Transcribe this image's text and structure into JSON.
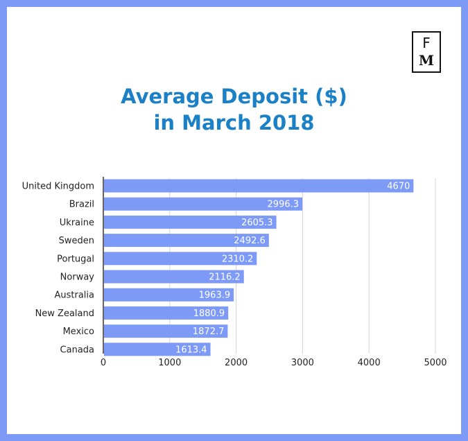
{
  "logo": {
    "line1": "F",
    "line2": "M"
  },
  "colors": {
    "frame": "#7e9af7",
    "bar": "#7e9af7",
    "title": "#1b80c6",
    "grid": "#d4d4d4"
  },
  "chart_data": {
    "type": "bar",
    "orientation": "horizontal",
    "title_line1": "Average Deposit ($)",
    "title_line2": "in March 2018",
    "categories": [
      "United Kingdom",
      "Brazil",
      "Ukraine",
      "Sweden",
      "Portugal",
      "Norway",
      "Australia",
      "New Zealand",
      "Mexico",
      "Canada"
    ],
    "values": [
      4670,
      2996.3,
      2605.3,
      2492.6,
      2310.2,
      2116.2,
      1963.9,
      1880.9,
      1872.7,
      1613.4
    ],
    "value_labels": [
      "4670",
      "2996.3",
      "2605.3",
      "2492.6",
      "2310.2",
      "2116.2",
      "1963.9",
      "1880.9",
      "1872.7",
      "1613.4"
    ],
    "xlim": [
      0,
      5000
    ],
    "xticks": [
      "0",
      "1000",
      "2000",
      "3000",
      "4000",
      "5000"
    ],
    "xtick_values": [
      0,
      1000,
      2000,
      3000,
      4000,
      5000
    ],
    "grid": true
  }
}
